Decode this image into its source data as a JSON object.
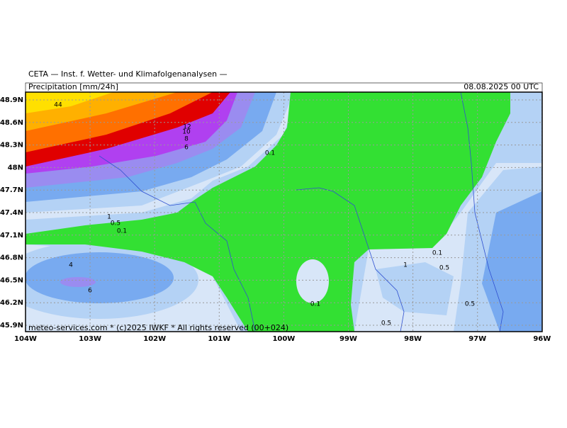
{
  "header": {
    "title": "CETA — Inst. f. Wetter- und Klimafolgenanalysen —",
    "variable": "Precipitation [mm/24h]",
    "valid_time": "08.08.2025 00 UTC"
  },
  "map": {
    "lat_labels": [
      "48.9N",
      "48.6N",
      "48.3N",
      "48N",
      "47.7N",
      "47.4N",
      "47.1N",
      "46.8N",
      "46.5N",
      "46.2N",
      "45.9N"
    ],
    "lon_labels": [
      "104W",
      "103W",
      "102W",
      "101W",
      "100W",
      "99W",
      "98W",
      "97W",
      "96W"
    ],
    "contour_labels": [
      "44",
      "12",
      "10",
      "8",
      "6",
      "0.1",
      "1",
      "0.5",
      "0.1",
      "4",
      "6",
      "0.1",
      "1",
      "0.1",
      "0.5",
      "0.5",
      "0.5"
    ],
    "footer": "meteo-services.com * (c)2025 IWKF * All rights reserved (00+024)"
  }
}
